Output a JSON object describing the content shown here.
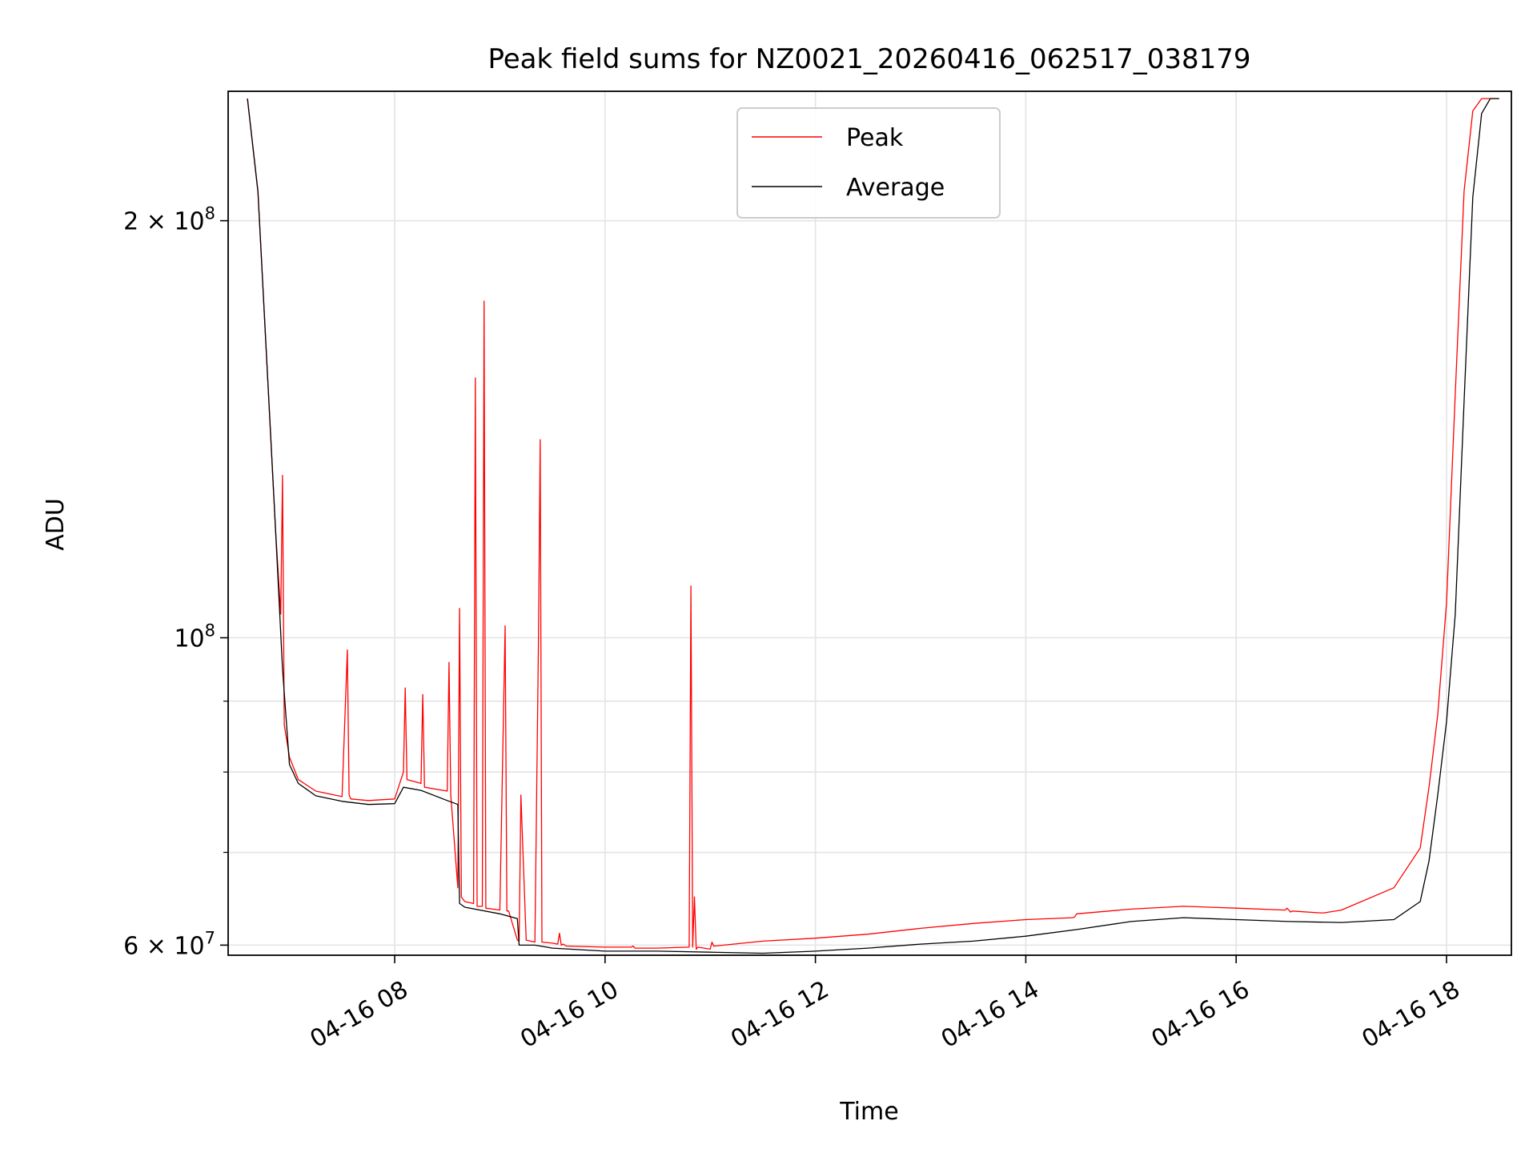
{
  "chart_data": {
    "type": "line",
    "title": "Peak field sums for NZ0021_20260416_062517_038179",
    "xlabel": "Time",
    "ylabel": "ADU",
    "yscale": "log",
    "grid": true,
    "legend_position": "top-center",
    "xlim": [
      "2026-04-16T06:25",
      "2026-04-16T18:37"
    ],
    "ylim": [
      59000000,
      248000000
    ],
    "x_ticks": [
      {
        "value": "2026-04-16T08:00",
        "label": "04-16 08"
      },
      {
        "value": "2026-04-16T10:00",
        "label": "04-16 10"
      },
      {
        "value": "2026-04-16T12:00",
        "label": "04-16 12"
      },
      {
        "value": "2026-04-16T14:00",
        "label": "04-16 14"
      },
      {
        "value": "2026-04-16T16:00",
        "label": "04-16 16"
      },
      {
        "value": "2026-04-16T18:00",
        "label": "04-16 18"
      }
    ],
    "y_ticks": [
      {
        "value": 60000000,
        "base": "6",
        "exp": "7",
        "mult": true
      },
      {
        "value": 100000000,
        "base": "",
        "exp": "8",
        "mult": false
      },
      {
        "value": 200000000,
        "base": "2",
        "exp": "8",
        "mult": true
      }
    ],
    "y_minor_ticks": [
      70000000,
      80000000,
      90000000
    ],
    "series": [
      {
        "name": "Peak",
        "color": "#ff0000",
        "x": [
          "2026-04-16T06:36",
          "2026-04-16T06:42",
          "2026-04-16T06:48",
          "2026-04-16T06:52",
          "2026-04-16T06:55",
          "2026-04-16T06:56",
          "2026-04-16T06:57",
          "2026-04-16T07:00",
          "2026-04-16T07:05",
          "2026-04-16T07:15",
          "2026-04-16T07:30",
          "2026-04-16T07:33",
          "2026-04-16T07:34",
          "2026-04-16T07:35",
          "2026-04-16T07:45",
          "2026-04-16T08:00",
          "2026-04-16T08:05",
          "2026-04-16T08:06",
          "2026-04-16T08:07",
          "2026-04-16T08:15",
          "2026-04-16T08:16",
          "2026-04-16T08:17",
          "2026-04-16T08:30",
          "2026-04-16T08:31",
          "2026-04-16T08:32",
          "2026-04-16T08:36",
          "2026-04-16T08:37",
          "2026-04-16T08:38",
          "2026-04-16T08:40",
          "2026-04-16T08:45",
          "2026-04-16T08:46",
          "2026-04-16T08:47",
          "2026-04-16T08:50",
          "2026-04-16T08:51",
          "2026-04-16T08:52",
          "2026-04-16T09:00",
          "2026-04-16T09:03",
          "2026-04-16T09:04",
          "2026-04-16T09:05",
          "2026-04-16T09:10",
          "2026-04-16T09:11",
          "2026-04-16T09:12",
          "2026-04-16T09:15",
          "2026-04-16T09:20",
          "2026-04-16T09:22",
          "2026-04-16T09:23",
          "2026-04-16T09:24",
          "2026-04-16T09:30",
          "2026-04-16T09:33",
          "2026-04-16T09:34",
          "2026-04-16T09:35",
          "2026-04-16T09:36",
          "2026-04-16T09:38",
          "2026-04-16T10:00",
          "2026-04-16T10:15",
          "2026-04-16T10:16",
          "2026-04-16T10:17",
          "2026-04-16T10:30",
          "2026-04-16T10:48",
          "2026-04-16T10:49",
          "2026-04-16T10:50",
          "2026-04-16T10:51",
          "2026-04-16T10:52",
          "2026-04-16T10:53",
          "2026-04-16T11:00",
          "2026-04-16T11:01",
          "2026-04-16T11:02",
          "2026-04-16T11:30",
          "2026-04-16T12:00",
          "2026-04-16T12:30",
          "2026-04-16T13:00",
          "2026-04-16T13:30",
          "2026-04-16T14:00",
          "2026-04-16T14:27",
          "2026-04-16T14:28",
          "2026-04-16T14:29",
          "2026-04-16T15:00",
          "2026-04-16T15:30",
          "2026-04-16T16:00",
          "2026-04-16T16:28",
          "2026-04-16T16:29",
          "2026-04-16T16:30",
          "2026-04-16T16:31",
          "2026-04-16T16:32",
          "2026-04-16T16:48",
          "2026-04-16T16:49",
          "2026-04-16T16:50",
          "2026-04-16T17:00",
          "2026-04-16T17:30",
          "2026-04-16T17:45",
          "2026-04-16T17:50",
          "2026-04-16T17:55",
          "2026-04-16T18:00",
          "2026-04-16T18:05",
          "2026-04-16T18:10",
          "2026-04-16T18:15",
          "2026-04-16T18:20",
          "2026-04-16T18:25",
          "2026-04-16T18:30"
        ],
        "y": [
          245000000,
          210000000,
          150000000,
          120000000,
          104000000,
          131000000,
          86500000,
          82000000,
          79000000,
          77500000,
          76800000,
          98000000,
          77000000,
          76500000,
          76300000,
          76500000,
          80000000,
          92000000,
          79000000,
          78500000,
          91000000,
          78000000,
          77500000,
          96000000,
          77000000,
          66000000,
          105000000,
          65000000,
          64500000,
          64300000,
          154000000,
          64000000,
          64000000,
          175000000,
          63800000,
          63600000,
          102000000,
          63500000,
          63500000,
          60500000,
          60400000,
          77000000,
          60500000,
          60300000,
          99000000,
          139000000,
          60300000,
          60200000,
          60100000,
          61200000,
          60000000,
          60100000,
          59900000,
          59800000,
          59800000,
          59900000,
          59700000,
          59700000,
          59800000,
          109000000,
          59800000,
          65000000,
          59600000,
          59800000,
          59600000,
          60300000,
          59900000,
          60400000,
          60700000,
          61100000,
          61700000,
          62200000,
          62600000,
          62800000,
          62900000,
          63200000,
          63700000,
          64000000,
          63800000,
          63600000,
          63800000,
          63600000,
          63400000,
          63500000,
          63300000,
          63300000,
          63300000,
          63600000,
          66000000,
          70500000,
          78000000,
          88000000,
          106000000,
          150000000,
          210000000,
          240000000,
          245000000,
          245000000,
          245000000
        ]
      },
      {
        "name": "Average",
        "color": "#000000",
        "x": [
          "2026-04-16T06:36",
          "2026-04-16T06:42",
          "2026-04-16T06:48",
          "2026-04-16T06:52",
          "2026-04-16T06:56",
          "2026-04-16T07:00",
          "2026-04-16T07:05",
          "2026-04-16T07:15",
          "2026-04-16T07:30",
          "2026-04-16T07:45",
          "2026-04-16T08:00",
          "2026-04-16T08:05",
          "2026-04-16T08:15",
          "2026-04-16T08:30",
          "2026-04-16T08:36",
          "2026-04-16T08:37",
          "2026-04-16T08:40",
          "2026-04-16T09:00",
          "2026-04-16T09:10",
          "2026-04-16T09:11",
          "2026-04-16T09:20",
          "2026-04-16T09:30",
          "2026-04-16T10:00",
          "2026-04-16T10:30",
          "2026-04-16T11:00",
          "2026-04-16T11:30",
          "2026-04-16T12:00",
          "2026-04-16T12:30",
          "2026-04-16T13:00",
          "2026-04-16T13:30",
          "2026-04-16T14:00",
          "2026-04-16T14:30",
          "2026-04-16T15:00",
          "2026-04-16T15:30",
          "2026-04-16T16:00",
          "2026-04-16T16:30",
          "2026-04-16T17:00",
          "2026-04-16T17:30",
          "2026-04-16T17:45",
          "2026-04-16T17:50",
          "2026-04-16T17:55",
          "2026-04-16T18:00",
          "2026-04-16T18:05",
          "2026-04-16T18:10",
          "2026-04-16T18:15",
          "2026-04-16T18:20",
          "2026-04-16T18:25",
          "2026-04-16T18:30"
        ],
        "y": [
          245000000,
          210000000,
          150000000,
          120000000,
          95000000,
          81000000,
          78500000,
          76900000,
          76200000,
          75800000,
          75900000,
          78000000,
          77600000,
          76300000,
          75800000,
          64300000,
          63900000,
          63200000,
          62700000,
          60000000,
          60000000,
          59700000,
          59400000,
          59400000,
          59300000,
          59200000,
          59400000,
          59700000,
          60100000,
          60400000,
          60900000,
          61600000,
          62400000,
          62800000,
          62600000,
          62400000,
          62300000,
          62600000,
          64500000,
          69000000,
          77000000,
          87000000,
          104000000,
          148000000,
          208000000,
          239000000,
          245000000,
          245000000
        ]
      }
    ]
  }
}
